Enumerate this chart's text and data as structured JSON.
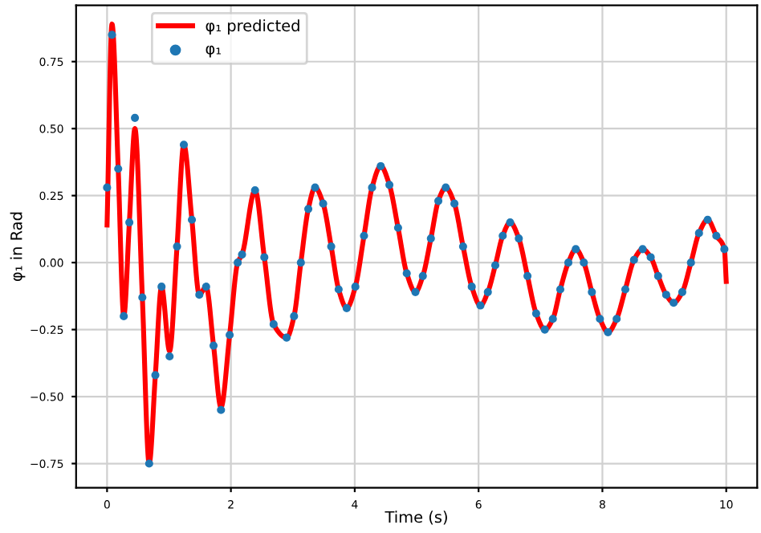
{
  "chart_data": {
    "type": "line",
    "xlabel": "Time (s)",
    "ylabel": "φ₁ in Rad",
    "xlim": [
      -0.5,
      10.5
    ],
    "ylim": [
      -0.84,
      0.96
    ],
    "xticks": [
      0,
      2,
      4,
      6,
      8,
      10
    ],
    "yticks": [
      {
        "value": -0.75,
        "label": "−0.75"
      },
      {
        "value": -0.5,
        "label": "−0.50"
      },
      {
        "value": -0.25,
        "label": "−0.25"
      },
      {
        "value": 0,
        "label": "0.00"
      },
      {
        "value": 0.25,
        "label": "0.25"
      },
      {
        "value": 0.5,
        "label": "0.50"
      },
      {
        "value": 0.75,
        "label": "0.75"
      }
    ],
    "grid": true,
    "legend": "top left",
    "series": [
      {
        "name": "φ₁ predicted",
        "color": "#ff0000",
        "x": [
          0,
          0.08,
          0.18,
          0.27,
          0.36,
          0.45,
          0.57,
          0.68,
          0.78,
          0.88,
          1.01,
          1.13,
          1.24,
          1.37,
          1.49,
          1.6,
          1.72,
          1.84,
          1.98,
          2.11,
          2.18,
          2.39,
          2.54,
          2.69,
          2.9,
          3.02,
          3.13,
          3.25,
          3.36,
          3.49,
          3.62,
          3.74,
          3.87,
          4.01,
          4.15,
          4.28,
          4.42,
          4.56,
          4.7,
          4.84,
          4.98,
          5.1,
          5.23,
          5.35,
          5.47,
          5.61,
          5.75,
          5.89,
          6.03,
          6.15,
          6.27,
          6.39,
          6.51,
          6.65,
          6.79,
          6.93,
          7.07,
          7.2,
          7.32,
          7.45,
          7.57,
          7.7,
          7.83,
          7.96,
          8.09,
          8.23,
          8.37,
          8.51,
          8.65,
          8.78,
          8.9,
          9.03,
          9.15,
          9.29,
          9.43,
          9.56,
          9.7,
          9.84,
          9.97,
          10
        ],
        "values": [
          0.14,
          0.89,
          0.35,
          -0.2,
          0.15,
          0.5,
          -0.13,
          -0.75,
          -0.42,
          -0.09,
          -0.33,
          0.06,
          0.44,
          0.16,
          -0.12,
          -0.09,
          -0.31,
          -0.54,
          -0.27,
          0,
          0.03,
          0.27,
          0.02,
          -0.23,
          -0.28,
          -0.2,
          0,
          0.2,
          0.28,
          0.22,
          0.06,
          -0.1,
          -0.17,
          -0.09,
          0.1,
          0.28,
          0.36,
          0.29,
          0.13,
          -0.04,
          -0.11,
          -0.05,
          0.09,
          0.23,
          0.28,
          0.22,
          0.06,
          -0.09,
          -0.16,
          -0.11,
          -0.01,
          0.1,
          0.15,
          0.09,
          -0.05,
          -0.19,
          -0.25,
          -0.21,
          -0.1,
          0,
          0.05,
          0,
          -0.11,
          -0.21,
          -0.26,
          -0.21,
          -0.1,
          0.01,
          0.05,
          0.02,
          -0.05,
          -0.12,
          -0.15,
          -0.11,
          0,
          0.11,
          0.16,
          0.1,
          0.05,
          -0.07
        ]
      },
      {
        "name": "φ₁",
        "type": "scatter",
        "color": "#1f77b4",
        "marker": "circle",
        "x": [
          0,
          0.08,
          0.18,
          0.27,
          0.36,
          0.45,
          0.57,
          0.68,
          0.78,
          0.88,
          1.01,
          1.13,
          1.24,
          1.37,
          1.49,
          1.6,
          1.72,
          1.84,
          1.98,
          2.11,
          2.18,
          2.39,
          2.54,
          2.69,
          2.9,
          3.02,
          3.13,
          3.25,
          3.36,
          3.49,
          3.62,
          3.74,
          3.87,
          4.01,
          4.15,
          4.28,
          4.42,
          4.56,
          4.7,
          4.84,
          4.98,
          5.1,
          5.23,
          5.35,
          5.47,
          5.61,
          5.75,
          5.89,
          6.03,
          6.15,
          6.27,
          6.39,
          6.51,
          6.65,
          6.79,
          6.93,
          7.07,
          7.2,
          7.32,
          7.45,
          7.57,
          7.7,
          7.83,
          7.96,
          8.09,
          8.23,
          8.37,
          8.51,
          8.65,
          8.78,
          8.9,
          9.03,
          9.15,
          9.29,
          9.43,
          9.56,
          9.7,
          9.84,
          9.97
        ],
        "values": [
          0.28,
          0.85,
          0.35,
          -0.2,
          0.15,
          0.54,
          -0.13,
          -0.75,
          -0.42,
          -0.09,
          -0.35,
          0.06,
          0.44,
          0.16,
          -0.12,
          -0.09,
          -0.31,
          -0.55,
          -0.27,
          0,
          0.03,
          0.27,
          0.02,
          -0.23,
          -0.28,
          -0.2,
          0,
          0.2,
          0.28,
          0.22,
          0.06,
          -0.1,
          -0.17,
          -0.09,
          0.1,
          0.28,
          0.36,
          0.29,
          0.13,
          -0.04,
          -0.11,
          -0.05,
          0.09,
          0.23,
          0.28,
          0.22,
          0.06,
          -0.09,
          -0.16,
          -0.11,
          -0.01,
          0.1,
          0.15,
          0.09,
          -0.05,
          -0.19,
          -0.25,
          -0.21,
          -0.1,
          0,
          0.05,
          0,
          -0.11,
          -0.21,
          -0.26,
          -0.21,
          -0.1,
          0.01,
          0.05,
          0.02,
          -0.05,
          -0.12,
          -0.15,
          -0.11,
          0,
          0.11,
          0.16,
          0.1,
          0.05
        ]
      }
    ]
  }
}
